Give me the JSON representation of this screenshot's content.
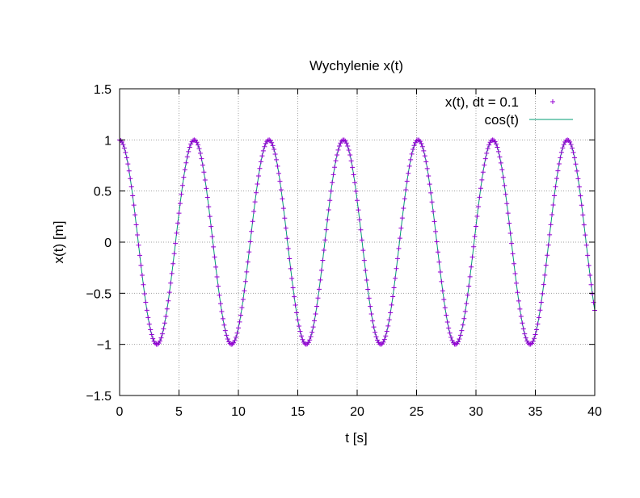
{
  "chart_data": {
    "type": "line",
    "title": "Wychylenie x(t)",
    "xlabel": "t [s]",
    "ylabel": "x(t) [m]",
    "xlim": [
      0,
      40
    ],
    "ylim": [
      -1.5,
      1.5
    ],
    "xticks": [
      0,
      5,
      10,
      15,
      20,
      25,
      30,
      35,
      40
    ],
    "xtick_labels": [
      "0",
      "5",
      "10",
      "15",
      "20",
      "25",
      "30",
      "35",
      "40"
    ],
    "yticks": [
      -1.5,
      -1,
      -0.5,
      0,
      0.5,
      1,
      1.5
    ],
    "ytick_labels": [
      "−1.5",
      "−1",
      "−0.5",
      "0",
      "0.5",
      "1",
      "1.5"
    ],
    "grid": true,
    "legend_position": "top-right",
    "series": [
      {
        "name": "x(t), dt = 0.1",
        "style": "points",
        "marker": "plus",
        "color": "#9400d3",
        "x_start": 0,
        "x_end": 40,
        "dx": 0.1,
        "function": "cos(t)"
      },
      {
        "name": "cos(t)",
        "style": "line",
        "color": "#009e73",
        "x_start": 0,
        "x_end": 40,
        "function": "cos(t)"
      }
    ]
  }
}
